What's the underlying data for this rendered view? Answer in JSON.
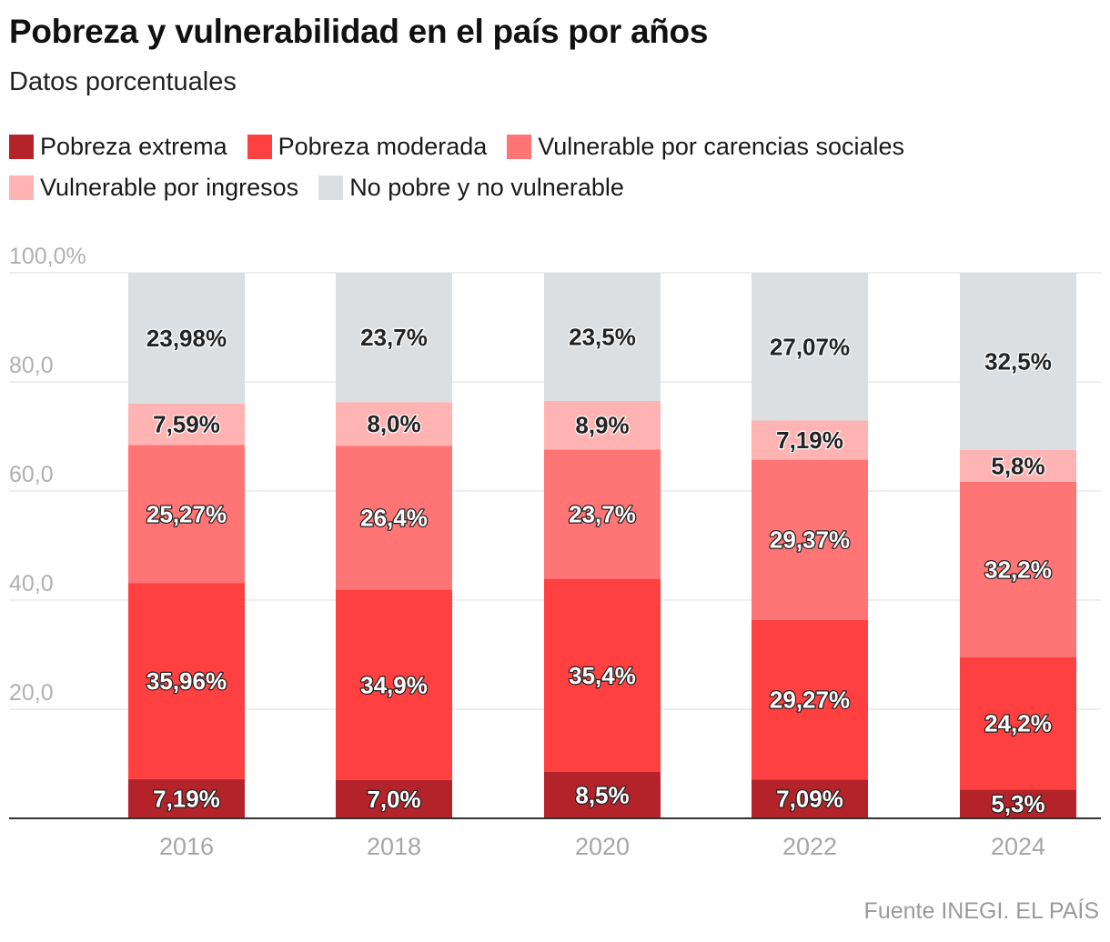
{
  "header": {
    "title": "Pobreza y vulnerabilidad en el país por años",
    "subtitle": "Datos porcentuales"
  },
  "legend": {
    "row1": [
      {
        "label": "Pobreza extrema",
        "color": "#b5232a"
      },
      {
        "label": "Pobreza moderada",
        "color": "#ff4040"
      },
      {
        "label": "Vulnerable por carencias sociales",
        "color": "#ff7575"
      }
    ],
    "row2": [
      {
        "label": "Vulnerable por ingresos",
        "color": "#ffb3b3"
      },
      {
        "label": "No pobre y no vulnerable",
        "color": "#dbdfe2"
      }
    ]
  },
  "chart_data": {
    "type": "bar",
    "stacked": true,
    "categories": [
      "2016",
      "2018",
      "2020",
      "2022",
      "2024"
    ],
    "series": [
      {
        "name": "Pobreza extrema",
        "color": "#b5232a",
        "values": [
          7.19,
          7.0,
          8.5,
          7.09,
          5.3
        ],
        "labels": [
          "7,19%",
          "7,0%",
          "8,5%",
          "7,09%",
          "5,3%"
        ]
      },
      {
        "name": "Pobreza moderada",
        "color": "#ff4040",
        "values": [
          35.96,
          34.9,
          35.4,
          29.27,
          24.2
        ],
        "labels": [
          "35,96%",
          "34,9%",
          "35,4%",
          "29,27%",
          "24,2%"
        ]
      },
      {
        "name": "Vulnerable por carencias sociales",
        "color": "#ff7575",
        "values": [
          25.27,
          26.4,
          23.7,
          29.37,
          32.2
        ],
        "labels": [
          "25,27%",
          "26,4%",
          "23,7%",
          "29,37%",
          "32,2%"
        ]
      },
      {
        "name": "Vulnerable por ingresos",
        "color": "#ffb3b3",
        "values": [
          7.59,
          8.0,
          8.9,
          7.19,
          5.8
        ],
        "labels": [
          "7,59%",
          "8,0%",
          "8,9%",
          "7,19%",
          "5,8%"
        ]
      },
      {
        "name": "No pobre y no vulnerable",
        "color": "#dbdfe2",
        "values": [
          23.98,
          23.7,
          23.5,
          27.07,
          32.5
        ],
        "labels": [
          "23,98%",
          "23,7%",
          "23,5%",
          "27,07%",
          "32,5%"
        ]
      }
    ],
    "ylim": [
      0,
      100
    ],
    "yticks": [
      20,
      40,
      60,
      80,
      100
    ],
    "ytick_labels": [
      "20,0",
      "40,0",
      "60,0",
      "80,0",
      "100,0%"
    ],
    "grid": true,
    "legend_position": "top-left"
  },
  "footer": {
    "source": "Fuente INEGI. EL PAÍS"
  }
}
